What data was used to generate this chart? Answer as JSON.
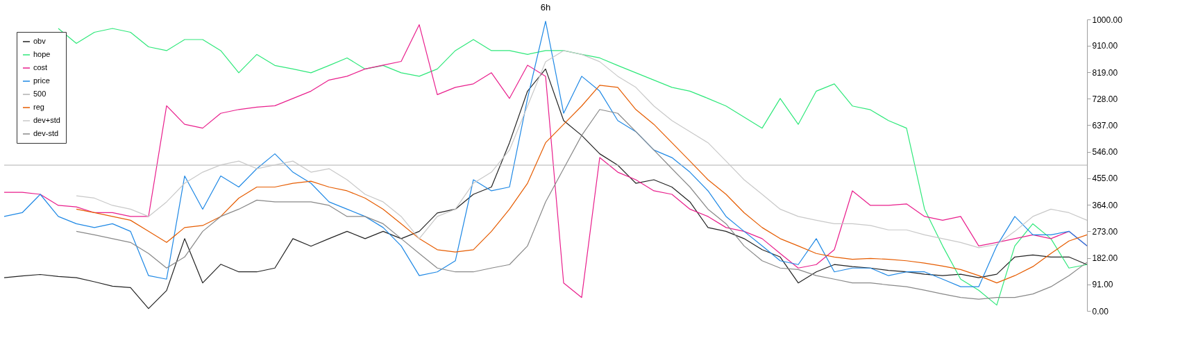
{
  "chart_data": {
    "type": "line",
    "title": "6h",
    "categories": [
      null,
      null,
      null,
      null,
      null,
      null,
      null,
      null,
      null,
      null,
      null,
      null,
      null,
      null,
      null,
      null,
      null,
      null,
      null,
      null,
      null,
      null,
      null,
      null,
      null,
      null,
      null,
      null,
      null,
      null,
      null,
      null,
      null,
      null,
      null,
      null,
      null,
      null,
      null,
      null,
      null,
      null,
      null,
      null,
      null,
      null,
      null,
      null,
      null,
      null,
      null,
      null,
      null,
      null,
      null,
      null,
      null,
      null,
      null,
      null,
      null
    ],
    "series": [
      {
        "name": "obv",
        "color": "#222222",
        "values": [
          114,
          120,
          125,
          118,
          114,
          100,
          85,
          80,
          8,
          70,
          248,
          96,
          160,
          134,
          134,
          147,
          248,
          222,
          248,
          273,
          248,
          273,
          248,
          273,
          336,
          349,
          400,
          425,
          577,
          754,
          830,
          653,
          602,
          539,
          500,
          438,
          450,
          425,
          374,
          286,
          273,
          248,
          210,
          185,
          96,
          134,
          159,
          152,
          147,
          139,
          134,
          126,
          121,
          126,
          114,
          126,
          185,
          192,
          185,
          185,
          159
        ]
      },
      {
        "name": "hope",
        "color": "#2ee87a",
        "values": [
          null,
          null,
          null,
          969,
          918,
          956,
          969,
          956,
          906,
          893,
          931,
          931,
          893,
          817,
          880,
          842,
          830,
          817,
          842,
          868,
          830,
          842,
          817,
          805,
          830,
          893,
          931,
          893,
          893,
          880,
          893,
          893,
          880,
          868,
          842,
          817,
          792,
          767,
          754,
          729,
          703,
          665,
          627,
          729,
          640,
          754,
          779,
          703,
          690,
          653,
          627,
          349,
          223,
          109,
          71,
          20,
          223,
          299,
          248,
          147,
          159
        ]
      },
      {
        "name": "cost",
        "color": "#e91e8c",
        "values": [
          407,
          407,
          400,
          362,
          357,
          337,
          337,
          324,
          324,
          704,
          640,
          627,
          678,
          691,
          699,
          704,
          729,
          754,
          792,
          805,
          830,
          843,
          856,
          982,
          742,
          767,
          779,
          817,
          729,
          843,
          805,
          96,
          46,
          526,
          476,
          450,
          412,
          400,
          349,
          324,
          286,
          273,
          248,
          197,
          147,
          159,
          210,
          412,
          362,
          362,
          367,
          324,
          311,
          324,
          223,
          235,
          248,
          261,
          248,
          273,
          223
        ]
      },
      {
        "name": "price",
        "color": "#1e88e5",
        "values": [
          324,
          337,
          400,
          324,
          299,
          286,
          299,
          273,
          121,
          109,
          463,
          349,
          463,
          425,
          488,
          539,
          476,
          438,
          374,
          349,
          324,
          286,
          223,
          121,
          134,
          172,
          450,
          412,
          425,
          729,
          994,
          678,
          805,
          754,
          653,
          615,
          552,
          526,
          476,
          412,
          324,
          273,
          223,
          172,
          159,
          248,
          134,
          147,
          147,
          121,
          134,
          134,
          109,
          83,
          83,
          223,
          324,
          261,
          261,
          273,
          223
        ]
      },
      {
        "name": "500",
        "color": "#b0b0b0",
        "values": [
          500,
          500,
          500,
          500,
          500,
          500,
          500,
          500,
          500,
          500,
          500,
          500,
          500,
          500,
          500,
          500,
          500,
          500,
          500,
          500,
          500,
          500,
          500,
          500,
          500,
          500,
          500,
          500,
          500,
          500,
          500,
          500,
          500,
          500,
          500,
          500,
          500,
          500,
          500,
          500,
          500,
          500,
          500,
          500,
          500,
          500,
          500,
          500,
          500,
          500,
          500,
          500,
          500,
          500,
          500,
          500,
          500,
          500,
          500,
          500,
          500
        ]
      },
      {
        "name": "reg",
        "color": "#e65c00",
        "values": [
          null,
          null,
          null,
          null,
          349,
          337,
          324,
          311,
          273,
          235,
          286,
          293,
          324,
          387,
          425,
          425,
          438,
          445,
          425,
          412,
          387,
          349,
          299,
          248,
          210,
          202,
          210,
          273,
          349,
          438,
          577,
          640,
          703,
          774,
          767,
          691,
          640,
          577,
          514,
          450,
          400,
          337,
          286,
          248,
          223,
          197,
          185,
          177,
          180,
          177,
          172,
          164,
          154,
          142,
          121,
          96,
          121,
          152,
          197,
          240,
          261
        ]
      },
      {
        "name": "dev+std",
        "color": "#c8c8c8",
        "values": [
          null,
          null,
          null,
          null,
          395,
          387,
          362,
          349,
          324,
          374,
          438,
          476,
          501,
          514,
          488,
          501,
          514,
          476,
          488,
          450,
          400,
          374,
          324,
          248,
          324,
          349,
          438,
          476,
          552,
          703,
          855,
          893,
          880,
          855,
          805,
          767,
          703,
          653,
          615,
          577,
          514,
          450,
          400,
          349,
          324,
          311,
          299,
          299,
          293,
          278,
          278,
          261,
          248,
          235,
          217,
          228,
          273,
          324,
          349,
          337,
          311
        ]
      },
      {
        "name": "dev-std",
        "color": "#888888",
        "values": [
          null,
          null,
          null,
          null,
          273,
          261,
          248,
          235,
          197,
          147,
          185,
          273,
          324,
          349,
          380,
          374,
          374,
          374,
          362,
          324,
          324,
          299,
          248,
          197,
          147,
          134,
          134,
          147,
          159,
          223,
          374,
          488,
          602,
          691,
          678,
          615,
          552,
          488,
          425,
          349,
          299,
          223,
          172,
          147,
          142,
          121,
          109,
          96,
          96,
          89,
          83,
          71,
          58,
          46,
          40,
          46,
          46,
          58,
          83,
          121,
          167
        ]
      }
    ],
    "ylim": [
      0,
      1000
    ],
    "yticks": [
      {
        "value": 0,
        "label": "0.00"
      },
      {
        "value": 91,
        "label": "91.00"
      },
      {
        "value": 182,
        "label": "182.00"
      },
      {
        "value": 273,
        "label": "273.00"
      },
      {
        "value": 364,
        "label": "364.00"
      },
      {
        "value": 455,
        "label": "455.00"
      },
      {
        "value": 546,
        "label": "546.00"
      },
      {
        "value": 637,
        "label": "637.00"
      },
      {
        "value": 728,
        "label": "728.00"
      },
      {
        "value": 819,
        "label": "819.00"
      },
      {
        "value": 910,
        "label": "910.00"
      },
      {
        "value": 1000,
        "label": "1000.00"
      }
    ],
    "tick_labels": "y",
    "grid": false,
    "legend": "top left",
    "marker": "none",
    "line_style": "solid"
  }
}
